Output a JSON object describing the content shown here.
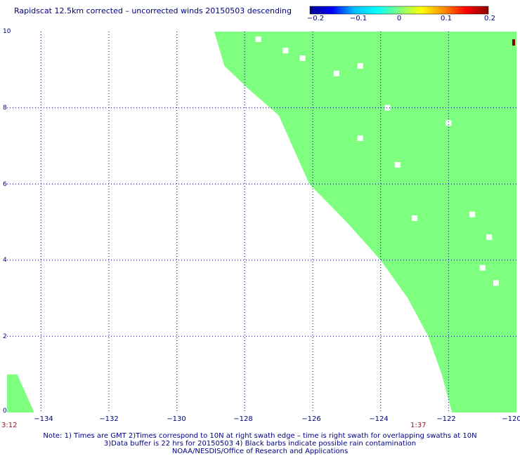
{
  "title": "Rapidscat 12.5km corrected – uncorrected winds 20150503 descending",
  "colorbar": {
    "ticks": [
      "−0.2",
      "−0.1",
      "0",
      "0.1",
      "0.2"
    ],
    "stops": [
      "#00008b",
      "#0000ff",
      "#00bfff",
      "#00ffff",
      "#7fff7f",
      "#ffff00",
      "#ff8c00",
      "#ff0000",
      "#8b0000"
    ]
  },
  "colors": {
    "swath": "#7fff7f",
    "grid": "#000080",
    "time": "#8b1a1a",
    "edge_marker": "#8b0000"
  },
  "x_axis": {
    "labels": [
      "−134",
      "−132",
      "−130",
      "−128",
      "−126",
      "−124",
      "−122",
      "−120"
    ],
    "range": [
      -135,
      -120
    ]
  },
  "y_axis": {
    "labels": [
      "0",
      "2",
      "4",
      "6",
      "8",
      "10"
    ],
    "range": [
      0,
      10
    ]
  },
  "times": {
    "left": "3:12",
    "right": "1:37"
  },
  "notes": [
    "Note: 1) Times are GMT 2)Times correspond to 10N at right swath edge – time is right swath for overlapping swaths at 10N",
    "3)Data buffer is 22 hrs for 20150503 4) Black barbs indicate possible rain contamination",
    "NOAA/NESDIS/Office of Research and Applications"
  ],
  "map_data": {
    "swath_boundary_lon_lat": [
      [
        -128.9,
        10
      ],
      [
        -128.6,
        9.1
      ],
      [
        -127.9,
        8.5
      ],
      [
        -127.0,
        7.8
      ],
      [
        -126.1,
        6.0
      ],
      [
        -125.0,
        5.0
      ],
      [
        -124.0,
        4.0
      ],
      [
        -123.2,
        3.0
      ],
      [
        -122.6,
        2.0
      ],
      [
        -122.2,
        1.0
      ],
      [
        -121.9,
        0
      ]
    ],
    "small_swath_bottom_left": [
      [
        -135,
        0
      ],
      [
        -135,
        1.0
      ],
      [
        -134.7,
        1.0
      ],
      [
        -134.5,
        0.6
      ],
      [
        -134.2,
        0
      ]
    ],
    "missing_cells_lon_lat": [
      [
        -127.6,
        9.8
      ],
      [
        -126.8,
        9.5
      ],
      [
        -126.3,
        9.3
      ],
      [
        -124.6,
        9.1
      ],
      [
        -125.3,
        8.9
      ],
      [
        -123.8,
        8.0
      ],
      [
        -122.0,
        7.6
      ],
      [
        -123.5,
        6.5
      ],
      [
        -124.6,
        7.2
      ],
      [
        -123.0,
        5.1
      ],
      [
        -121.3,
        5.2
      ],
      [
        -120.8,
        4.6
      ],
      [
        -121.0,
        3.8
      ],
      [
        -120.6,
        3.4
      ]
    ]
  }
}
